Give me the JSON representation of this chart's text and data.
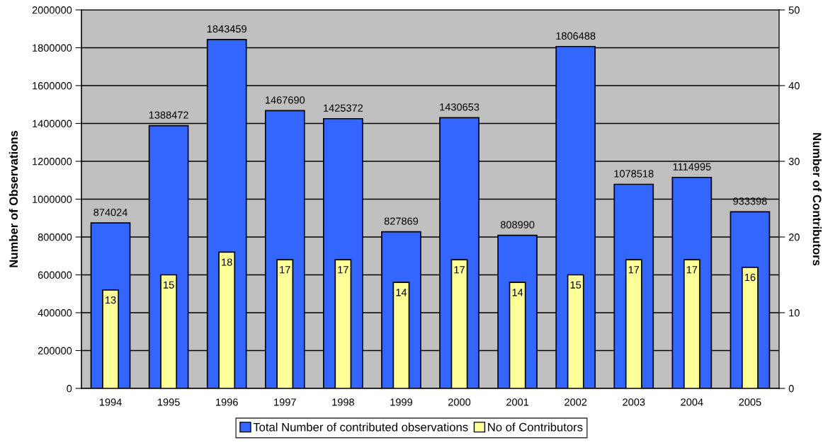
{
  "chart_data": {
    "type": "bar",
    "categories": [
      "1994",
      "1995",
      "1996",
      "1997",
      "1998",
      "1999",
      "2000",
      "2001",
      "2002",
      "2003",
      "2004",
      "2005"
    ],
    "series": [
      {
        "name": "Total Number of contributed observations",
        "color": "#3366ff",
        "values": [
          874024,
          1388472,
          1843459,
          1467690,
          1425372,
          827869,
          1430653,
          808990,
          1806488,
          1078518,
          1114995,
          933398
        ]
      },
      {
        "name": "No of Contributors",
        "color": "#ffff99",
        "axis": "y2",
        "values": [
          13,
          15,
          18,
          17,
          17,
          14,
          17,
          14,
          15,
          17,
          17,
          16
        ]
      }
    ],
    "ylabel": "Number of Observations",
    "y2label": "Number of Contributors",
    "ylim": [
      0,
      2000000
    ],
    "yticks": [
      0,
      200000,
      400000,
      600000,
      800000,
      1000000,
      1200000,
      1400000,
      1600000,
      1800000,
      2000000
    ],
    "y2lim": [
      0,
      50
    ],
    "y2ticks": [
      0,
      10,
      20,
      30,
      40,
      50
    ],
    "data_labels": true,
    "grid": "y",
    "legend": "bottom"
  }
}
